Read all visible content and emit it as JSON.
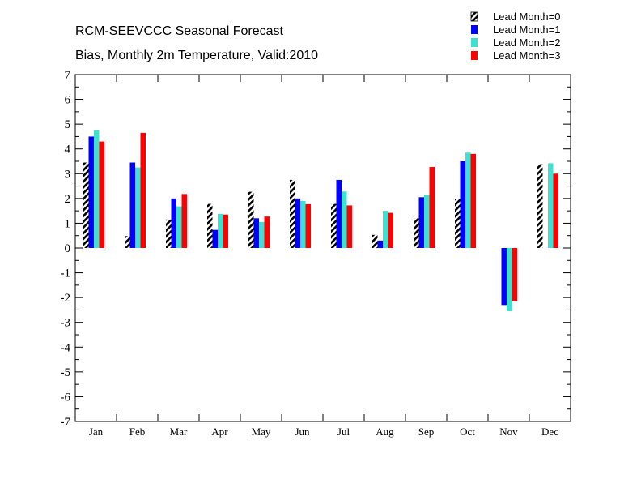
{
  "chart_data": {
    "type": "bar",
    "title": "RCM-SEEVCCC Seasonal Forecast",
    "subtitle": "Bias, Monthly 2m Temperature, Valid:2010",
    "xlabel": "",
    "ylabel": "",
    "ylim": [
      -7,
      7
    ],
    "yticks": [
      "7",
      "6",
      "5",
      "4",
      "3",
      "2",
      "1",
      "0",
      "-1",
      "-2",
      "-3",
      "-4",
      "-5",
      "-6",
      "-7"
    ],
    "categories": [
      "Jan",
      "Feb",
      "Mar",
      "Apr",
      "May",
      "Jun",
      "Jul",
      "Aug",
      "Sep",
      "Oct",
      "Nov",
      "Dec"
    ],
    "legend_position": "top-right",
    "grid": false,
    "series": [
      {
        "name": "Lead Month=0",
        "color": "#000000",
        "pattern": "hatched",
        "values": [
          3.45,
          0.48,
          1.15,
          1.78,
          2.27,
          2.75,
          1.78,
          0.53,
          1.2,
          1.98,
          0.0,
          3.38
        ]
      },
      {
        "name": "Lead Month=1",
        "color": "#0000ff",
        "pattern": "solid",
        "values": [
          4.5,
          3.45,
          2.0,
          0.73,
          1.2,
          2.0,
          2.75,
          0.3,
          2.05,
          3.5,
          -2.3,
          0.0
        ]
      },
      {
        "name": "Lead Month=2",
        "color": "#40e0d0",
        "pattern": "solid",
        "values": [
          4.75,
          3.25,
          1.68,
          1.38,
          1.05,
          1.9,
          2.28,
          1.5,
          2.15,
          3.85,
          -2.55,
          3.42
        ]
      },
      {
        "name": "Lead Month=3",
        "color": "#ff0000",
        "pattern": "solid",
        "values": [
          4.3,
          4.65,
          2.18,
          1.35,
          1.27,
          1.77,
          1.72,
          1.42,
          3.27,
          3.8,
          -2.15,
          3.0
        ]
      }
    ]
  }
}
